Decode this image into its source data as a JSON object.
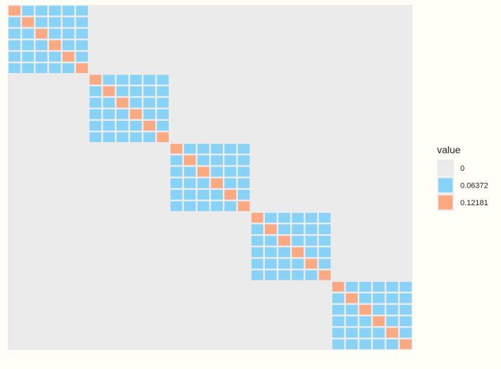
{
  "chart_data": {
    "type": "heatmap",
    "title": "",
    "xlabel": "",
    "ylabel": "",
    "grid": false,
    "legend_placement": "right",
    "legend_title": "value",
    "structure": {
      "matrix_size": 30,
      "block_count": 5,
      "block_size": 6,
      "off_block_value": 0,
      "in_block_off_diagonal_value": 0.06372,
      "diagonal_value": 0.12181
    },
    "legend": [
      {
        "label": "0",
        "value": 0,
        "color": "#ebebeb"
      },
      {
        "label": "0.06372",
        "value": 0.06372,
        "color": "#87d3f8"
      },
      {
        "label": "0.12181",
        "value": 0.12181,
        "color": "#fca982"
      }
    ],
    "colors": {
      "panel_background": "#ebebeb",
      "tile_border": "#ffffff",
      "page_background": "#fffff8"
    }
  }
}
